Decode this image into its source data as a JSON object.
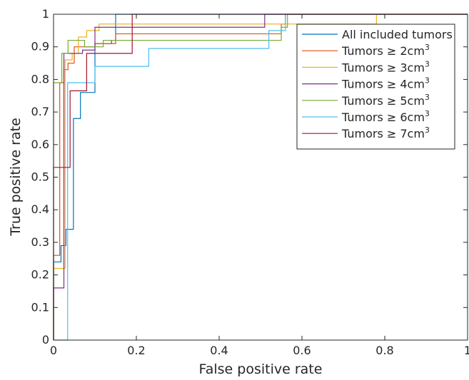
{
  "chart_data": {
    "type": "line",
    "title": "",
    "xlabel": "False positive rate",
    "ylabel": "True positive rate",
    "xlim": [
      0,
      1
    ],
    "ylim": [
      0,
      1
    ],
    "xticks": [
      0,
      0.2,
      0.4,
      0.6,
      0.8,
      1
    ],
    "xtick_labels": [
      "0",
      "0.2",
      "0.4",
      "0.6",
      "0.8",
      "1"
    ],
    "yticks": [
      0,
      0.1,
      0.2,
      0.3,
      0.4,
      0.5,
      0.6,
      0.7,
      0.8,
      0.9,
      1
    ],
    "ytick_labels": [
      "0",
      "0.1",
      "0.2",
      "0.3",
      "0.4",
      "0.5",
      "0.6",
      "0.7",
      "0.8",
      "0.9",
      "1"
    ],
    "grid": false,
    "legend_position": "top-right",
    "series": [
      {
        "name": "All included tumors",
        "legend_text": "All included tumors",
        "legend_sup": "",
        "color": "#0072BD",
        "points": [
          [
            0,
            0
          ],
          [
            0,
            0.24
          ],
          [
            0.018,
            0.24
          ],
          [
            0.018,
            0.29
          ],
          [
            0.03,
            0.29
          ],
          [
            0.03,
            0.34
          ],
          [
            0.048,
            0.34
          ],
          [
            0.048,
            0.68
          ],
          [
            0.065,
            0.68
          ],
          [
            0.065,
            0.76
          ],
          [
            0.1,
            0.76
          ],
          [
            0.1,
            0.91
          ],
          [
            0.14,
            0.91
          ],
          [
            0.14,
            0.92
          ],
          [
            0.15,
            0.92
          ],
          [
            0.15,
            1
          ],
          [
            1,
            1
          ]
        ]
      },
      {
        "name": "Tumors ≥ 2cm3",
        "legend_text": "Tumors ≥ 2cm",
        "legend_sup": "3",
        "color": "#D95319",
        "points": [
          [
            0,
            0
          ],
          [
            0,
            0.26
          ],
          [
            0.015,
            0.26
          ],
          [
            0.015,
            0.79
          ],
          [
            0.025,
            0.79
          ],
          [
            0.025,
            0.83
          ],
          [
            0.035,
            0.83
          ],
          [
            0.035,
            0.85
          ],
          [
            0.05,
            0.85
          ],
          [
            0.05,
            0.9
          ],
          [
            0.1,
            0.9
          ],
          [
            0.1,
            0.91
          ],
          [
            0.15,
            0.91
          ],
          [
            0.15,
            0.94
          ],
          [
            0.55,
            0.94
          ],
          [
            0.55,
            0.97
          ],
          [
            0.56,
            0.97
          ],
          [
            0.56,
            1
          ],
          [
            1,
            1
          ]
        ]
      },
      {
        "name": "Tumors ≥ 3cm3",
        "legend_text": "Tumors ≥ 3cm",
        "legend_sup": "3",
        "color": "#EDB120",
        "points": [
          [
            0,
            0
          ],
          [
            0,
            0.22
          ],
          [
            0.028,
            0.22
          ],
          [
            0.028,
            0.86
          ],
          [
            0.045,
            0.86
          ],
          [
            0.045,
            0.88
          ],
          [
            0.06,
            0.88
          ],
          [
            0.06,
            0.93
          ],
          [
            0.08,
            0.93
          ],
          [
            0.08,
            0.95
          ],
          [
            0.11,
            0.95
          ],
          [
            0.11,
            0.97
          ],
          [
            0.78,
            0.97
          ],
          [
            0.78,
            1
          ],
          [
            1,
            1
          ]
        ]
      },
      {
        "name": "Tumors ≥ 4cm3",
        "legend_text": "Tumors ≥ 4cm",
        "legend_sup": "3",
        "color": "#7E2F8E",
        "points": [
          [
            0,
            0
          ],
          [
            0,
            0.16
          ],
          [
            0.025,
            0.16
          ],
          [
            0.025,
            0.88
          ],
          [
            0.07,
            0.88
          ],
          [
            0.07,
            0.89
          ],
          [
            0.1,
            0.89
          ],
          [
            0.1,
            0.96
          ],
          [
            0.51,
            0.96
          ],
          [
            0.51,
            1
          ],
          [
            1,
            1
          ]
        ]
      },
      {
        "name": "Tumors ≥ 5cm3",
        "legend_text": "Tumors ≥ 5cm",
        "legend_sup": "3",
        "color": "#77AC30",
        "points": [
          [
            0,
            0
          ],
          [
            0,
            0.79
          ],
          [
            0.02,
            0.79
          ],
          [
            0.02,
            0.88
          ],
          [
            0.035,
            0.88
          ],
          [
            0.035,
            0.92
          ],
          [
            0.075,
            0.92
          ],
          [
            0.075,
            0.9
          ],
          [
            0.12,
            0.9
          ],
          [
            0.12,
            0.92
          ],
          [
            0.55,
            0.92
          ],
          [
            0.55,
            0.96
          ],
          [
            0.565,
            0.96
          ],
          [
            0.565,
            1
          ],
          [
            1,
            1
          ]
        ]
      },
      {
        "name": "Tumors ≥ 6cm3",
        "legend_text": "Tumors ≥ 6cm",
        "legend_sup": "3",
        "color": "#4DBEEE",
        "points": [
          [
            0,
            0
          ],
          [
            0.034,
            0
          ],
          [
            0.034,
            0.79
          ],
          [
            0.1,
            0.79
          ],
          [
            0.1,
            0.84
          ],
          [
            0.23,
            0.84
          ],
          [
            0.23,
            0.895
          ],
          [
            0.52,
            0.895
          ],
          [
            0.52,
            0.95
          ],
          [
            0.56,
            0.95
          ],
          [
            0.56,
            1
          ],
          [
            1,
            1
          ]
        ]
      },
      {
        "name": "Tumors ≥ 7cm3",
        "legend_text": "Tumors ≥ 7cm",
        "legend_sup": "3",
        "color": "#A2142F",
        "points": [
          [
            0,
            0
          ],
          [
            0,
            0.53
          ],
          [
            0.04,
            0.53
          ],
          [
            0.04,
            0.765
          ],
          [
            0.08,
            0.765
          ],
          [
            0.08,
            0.88
          ],
          [
            0.19,
            0.88
          ],
          [
            0.19,
            1
          ],
          [
            1,
            1
          ]
        ]
      }
    ]
  }
}
